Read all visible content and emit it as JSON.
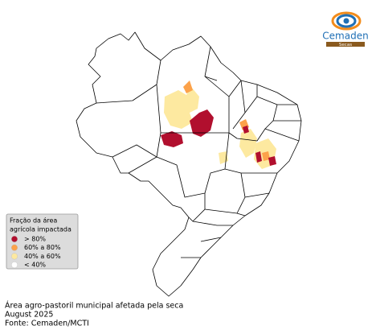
{
  "logo": {
    "name": "Cemaden",
    "tag": "Secas"
  },
  "legend": {
    "title": [
      "Fração da área",
      "agrícola impactada"
    ],
    "items": [
      {
        "label": "> 80%",
        "color": "#b10f2e"
      },
      {
        "label": "60% a 80%",
        "color": "#fca24a"
      },
      {
        "label": "40% a 60%",
        "color": "#fde9a0"
      },
      {
        "label": "< 40%",
        "color": "#ffffff"
      }
    ]
  },
  "caption": [
    "Área agro-pastoril municipal afetada pela seca",
    "August 2025",
    "Fonte: Cemaden/MCTI"
  ]
}
